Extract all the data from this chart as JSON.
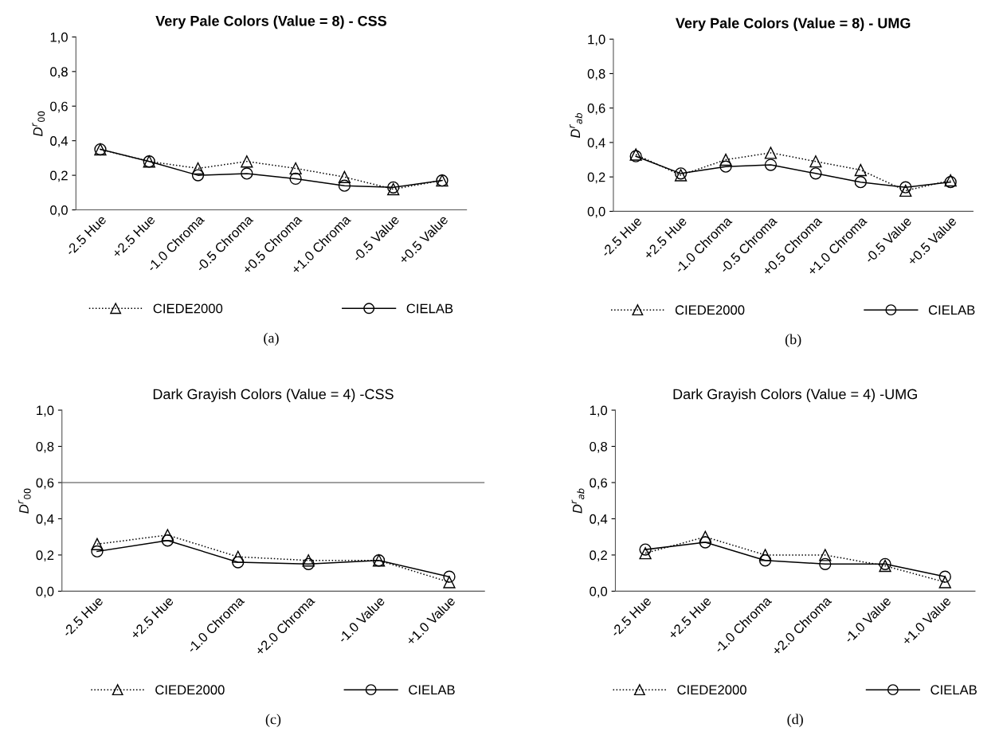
{
  "chart_data": [
    {
      "type": "line",
      "title": "Very Pale Colors (Value = 8) - CSS",
      "ylabel": "D$^{r}$$_{00}$",
      "categories": [
        "-2.5 Hue",
        "+2.5 Hue",
        "-1.0 Chroma",
        "-0.5 Chroma",
        "+0.5 Chroma",
        "+1.0 Chroma",
        "-0.5 Value",
        "+0.5 Value"
      ],
      "ylim": [
        0,
        1
      ],
      "yticks": [
        {
          "value": 0,
          "label": "0,0"
        },
        {
          "value": 0.2,
          "label": "0,2"
        },
        {
          "value": 0.4,
          "label": "0,4"
        },
        {
          "value": 0.6,
          "label": "0,6"
        },
        {
          "value": 0.8,
          "label": "0,8"
        },
        {
          "value": 1,
          "label": "1,0"
        }
      ],
      "grid": false,
      "legend": "bottom",
      "annotations": [
        "(a)"
      ],
      "series": [
        {
          "name": "CIEDE2000",
          "color": "#000000",
          "marker": "triangle",
          "line_style": "dotted",
          "values": [
            0.35,
            0.28,
            0.24,
            0.28,
            0.24,
            0.19,
            0.12,
            0.17
          ]
        },
        {
          "name": "CIELAB",
          "color": "#000000",
          "marker": "circle",
          "line_style": "solid",
          "values": [
            0.35,
            0.28,
            0.2,
            0.21,
            0.18,
            0.14,
            0.13,
            0.17
          ]
        }
      ]
    },
    {
      "type": "line",
      "title": "Very Pale Colors (Value = 8) - UMG",
      "ylabel": "D$^{r}$$_{ab}$",
      "categories": [
        "-2.5 Hue",
        "+2.5 Hue",
        "-1.0 Chroma",
        "-0.5 Chroma",
        "+0.5 Chroma",
        "+1.0 Chroma",
        "-0.5 Value",
        "+0.5 Value"
      ],
      "ylim": [
        0,
        1
      ],
      "yticks": [
        {
          "value": 0,
          "label": "0,0"
        },
        {
          "value": 0.2,
          "label": "0,2"
        },
        {
          "value": 0.4,
          "label": "0,4"
        },
        {
          "value": 0.6,
          "label": "0,6"
        },
        {
          "value": 0.8,
          "label": "0,8"
        },
        {
          "value": 1,
          "label": "1,0"
        }
      ],
      "grid": false,
      "legend": "bottom",
      "annotations": [
        "(b)"
      ],
      "series": [
        {
          "name": "CIEDE2000",
          "color": "#000000",
          "marker": "triangle",
          "line_style": "dotted",
          "values": [
            0.33,
            0.21,
            0.3,
            0.34,
            0.29,
            0.24,
            0.12,
            0.18
          ]
        },
        {
          "name": "CIELAB",
          "color": "#000000",
          "marker": "circle",
          "line_style": "solid",
          "values": [
            0.32,
            0.22,
            0.26,
            0.27,
            0.22,
            0.17,
            0.14,
            0.17
          ]
        }
      ]
    },
    {
      "type": "line",
      "title": "Dark Grayish Colors (Value = 4) -CSS",
      "ylabel": "D$^{r}$$_{00}$",
      "categories": [
        "-2.5 Hue",
        "+2.5 Hue",
        "-1.0 Chroma",
        "+2.0 Chroma",
        "-1.0 Value",
        "+1.0 Value"
      ],
      "ylim": [
        0,
        1
      ],
      "yticks": [
        {
          "value": 0,
          "label": "0,0"
        },
        {
          "value": 0.2,
          "label": "0,2"
        },
        {
          "value": 0.4,
          "label": "0,4"
        },
        {
          "value": 0.6,
          "label": "0,6"
        },
        {
          "value": 0.8,
          "label": "0,8"
        },
        {
          "value": 1,
          "label": "1,0"
        }
      ],
      "grid": false,
      "legend": "bottom",
      "annotations": [
        "(c)"
      ],
      "ref_lines": [
        {
          "axis": "y",
          "value": 0.6,
          "color": "#808080"
        }
      ],
      "series": [
        {
          "name": "CIEDE2000",
          "color": "#000000",
          "marker": "triangle",
          "line_style": "dotted",
          "values": [
            0.26,
            0.31,
            0.19,
            0.17,
            0.17,
            0.05
          ]
        },
        {
          "name": "CIELAB",
          "color": "#000000",
          "marker": "circle",
          "line_style": "solid",
          "values": [
            0.22,
            0.28,
            0.16,
            0.15,
            0.17,
            0.08
          ]
        }
      ]
    },
    {
      "type": "line",
      "title": "Dark Grayish Colors (Value = 4) -UMG",
      "ylabel": "D$^{r}$$_{ab}$",
      "categories": [
        "-2.5 Hue",
        "+2.5 Hue",
        "-1.0 Chroma",
        "+2.0 Chroma",
        "-1.0 Value",
        "+1.0 Value"
      ],
      "ylim": [
        0,
        1
      ],
      "yticks": [
        {
          "value": 0,
          "label": "0,0"
        },
        {
          "value": 0.2,
          "label": "0,2"
        },
        {
          "value": 0.4,
          "label": "0,4"
        },
        {
          "value": 0.6,
          "label": "0,6"
        },
        {
          "value": 0.8,
          "label": "0,8"
        },
        {
          "value": 1,
          "label": "1,0"
        }
      ],
      "grid": false,
      "legend": "bottom",
      "annotations": [
        "(d)"
      ],
      "series": [
        {
          "name": "CIEDE2000",
          "color": "#000000",
          "marker": "triangle",
          "line_style": "dotted",
          "values": [
            0.21,
            0.3,
            0.2,
            0.2,
            0.14,
            0.05
          ]
        },
        {
          "name": "CIELAB",
          "color": "#000000",
          "marker": "circle",
          "line_style": "solid",
          "values": [
            0.23,
            0.27,
            0.17,
            0.15,
            0.15,
            0.08
          ]
        }
      ]
    }
  ]
}
